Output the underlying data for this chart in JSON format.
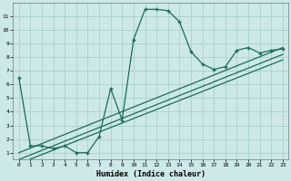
{
  "xlabel": "Humidex (Indice chaleur)",
  "xlim": [
    -0.5,
    23.5
  ],
  "ylim": [
    0.5,
    12.0
  ],
  "yticks": [
    1,
    2,
    3,
    4,
    5,
    6,
    7,
    8,
    9,
    10,
    11
  ],
  "xticks": [
    0,
    1,
    2,
    3,
    4,
    5,
    6,
    7,
    8,
    9,
    10,
    11,
    12,
    13,
    14,
    15,
    16,
    17,
    18,
    19,
    20,
    21,
    22,
    23
  ],
  "bg_color": "#cde8e8",
  "line_color": "#1a6b5a",
  "grid_color": "#aacfcf",
  "main_curve": {
    "x": [
      0,
      1,
      2,
      3,
      4,
      5,
      6,
      7,
      8,
      9,
      10,
      11,
      12,
      13,
      14,
      15,
      16,
      17,
      18,
      19,
      20,
      21,
      22,
      23
    ],
    "y": [
      6.5,
      1.5,
      1.5,
      1.3,
      1.5,
      1.0,
      1.0,
      2.2,
      5.7,
      3.4,
      9.3,
      11.5,
      11.5,
      11.4,
      10.6,
      8.4,
      7.5,
      7.1,
      7.3,
      8.5,
      8.7,
      8.3,
      8.5,
      8.6
    ]
  },
  "line1": {
    "x": [
      0,
      23
    ],
    "y": [
      1.0,
      8.7
    ]
  },
  "line2": {
    "x": [
      0,
      23
    ],
    "y": [
      0.5,
      8.2
    ]
  },
  "line3": {
    "x": [
      0,
      23
    ],
    "y": [
      0.2,
      7.8
    ]
  }
}
